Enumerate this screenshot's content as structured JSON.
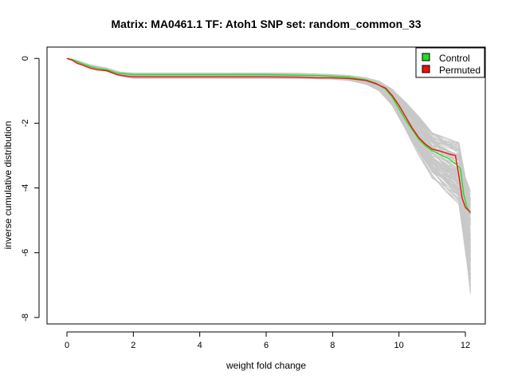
{
  "chart_data": {
    "type": "line",
    "title": "Matrix: MA0461.1 TF: Atoh1 SNP set: random_common_33",
    "xlabel": "weight fold change",
    "ylabel": "inverse cumulative distribution",
    "xlim": [
      -0.6,
      12.6
    ],
    "ylim": [
      -8.2,
      0.35
    ],
    "xticks": [
      0,
      2,
      4,
      6,
      8,
      10,
      12
    ],
    "yticks": [
      0,
      -2,
      -4,
      -6,
      -8
    ],
    "grid": false,
    "legend_position": "top-right",
    "legend": [
      {
        "label": "Control",
        "color": "#22dd22"
      },
      {
        "label": "Permuted",
        "color": "#ee1111"
      }
    ],
    "series": [
      {
        "name": "Control",
        "color": "#22dd22",
        "x": [
          0,
          0.15,
          0.3,
          0.5,
          0.7,
          0.9,
          1.2,
          1.5,
          1.8,
          2.0,
          4.0,
          6.0,
          7.0,
          7.5,
          8.0,
          8.5,
          9.0,
          9.3,
          9.6,
          9.8,
          10.0,
          10.2,
          10.4,
          10.6,
          10.8,
          11.0,
          11.2,
          11.5,
          11.7,
          11.85,
          11.95,
          12.05,
          12.15
        ],
        "y": [
          0,
          -0.03,
          -0.1,
          -0.18,
          -0.25,
          -0.3,
          -0.35,
          -0.45,
          -0.48,
          -0.5,
          -0.5,
          -0.5,
          -0.52,
          -0.53,
          -0.55,
          -0.58,
          -0.66,
          -0.76,
          -0.95,
          -1.2,
          -1.55,
          -1.9,
          -2.2,
          -2.5,
          -2.7,
          -2.85,
          -2.95,
          -3.1,
          -3.25,
          -3.4,
          -4.2,
          -4.6,
          -4.78
        ]
      },
      {
        "name": "Permuted",
        "color": "#ee1111",
        "x": [
          0,
          0.15,
          0.3,
          0.5,
          0.7,
          0.9,
          1.2,
          1.5,
          1.8,
          2.0,
          4.0,
          6.0,
          7.0,
          7.5,
          8.0,
          8.5,
          9.0,
          9.3,
          9.6,
          9.8,
          10.0,
          10.2,
          10.4,
          10.6,
          10.8,
          11.0,
          11.2,
          11.5,
          11.7,
          11.8,
          11.9,
          12.0,
          12.15
        ],
        "y": [
          0,
          -0.05,
          -0.15,
          -0.22,
          -0.3,
          -0.35,
          -0.38,
          -0.5,
          -0.55,
          -0.57,
          -0.57,
          -0.57,
          -0.58,
          -0.6,
          -0.6,
          -0.62,
          -0.68,
          -0.78,
          -0.92,
          -1.15,
          -1.45,
          -1.8,
          -2.15,
          -2.45,
          -2.65,
          -2.8,
          -2.85,
          -2.95,
          -3.0,
          -3.6,
          -4.3,
          -4.6,
          -4.75
        ]
      }
    ],
    "background_curves": {
      "color": "#c8c8c8",
      "count": 100,
      "x_points": [
        0,
        0.3,
        0.7,
        1.2,
        1.6,
        2.0,
        4.0,
        6.0,
        7.0,
        8.0,
        8.5,
        9.0,
        9.4,
        9.8,
        10.2,
        10.6,
        11.0,
        11.4,
        11.8,
        12.0,
        12.15
      ],
      "y_min": [
        0,
        -0.12,
        -0.3,
        -0.4,
        -0.55,
        -0.62,
        -0.62,
        -0.62,
        -0.62,
        -0.64,
        -0.68,
        -0.8,
        -1.0,
        -1.45,
        -2.2,
        -3.0,
        -3.7,
        -4.1,
        -4.5,
        -6.0,
        -7.3
      ],
      "y_max": [
        0,
        -0.06,
        -0.2,
        -0.3,
        -0.42,
        -0.45,
        -0.45,
        -0.45,
        -0.46,
        -0.5,
        -0.53,
        -0.6,
        -0.7,
        -0.95,
        -1.35,
        -1.8,
        -2.3,
        -2.45,
        -2.6,
        -3.6,
        -4.1
      ]
    }
  }
}
